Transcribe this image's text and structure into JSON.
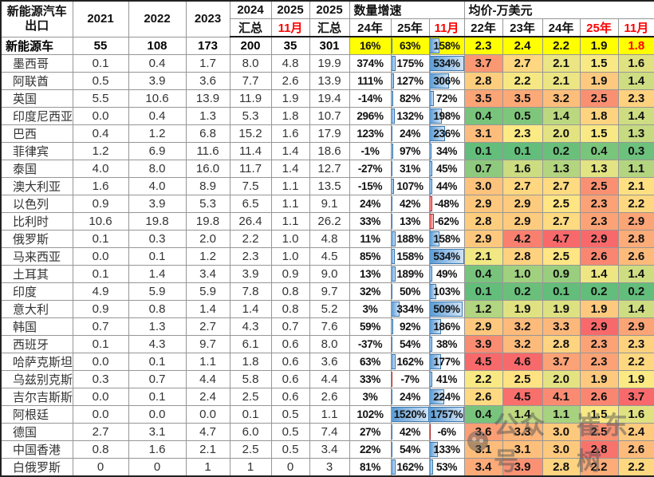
{
  "chart_data": {
    "type": "table",
    "title": "新能源汽车出口",
    "corner_header": [
      "新能源汽车",
      "出口"
    ],
    "year_headers": [
      "2021",
      "2022",
      "2023"
    ],
    "split_headers": [
      {
        "top": "2024",
        "bottom": "汇总",
        "red": false
      },
      {
        "top": "2025",
        "bottom": "11月",
        "red": true
      },
      {
        "top": "2025",
        "bottom": "汇总",
        "red": false
      }
    ],
    "growth_group": {
      "label": "数量增速",
      "subs": [
        "24年",
        "25年",
        "11月"
      ],
      "red_subs": [
        2
      ]
    },
    "price_group": {
      "label": "均价-万美元",
      "subs": [
        "22年",
        "23年",
        "24年",
        "25年",
        "11月"
      ],
      "red_subs": [
        3,
        4
      ]
    },
    "rows": [
      {
        "name": "新能源车",
        "total": true,
        "qty": [
          "55",
          "108",
          "173",
          "200",
          "35",
          "301"
        ],
        "growth": [
          "16%",
          "63%",
          "158%"
        ],
        "price": [
          "2.3",
          "2.4",
          "2.2",
          "1.9",
          "1.8"
        ]
      },
      {
        "name": "墨西哥",
        "total": false,
        "qty": [
          "0.1",
          "0.4",
          "1.7",
          "8.0",
          "4.8",
          "19.9"
        ],
        "growth": [
          "374%",
          "175%",
          "534%"
        ],
        "price": [
          "3.7",
          "2.7",
          "2.1",
          "1.5",
          "1.6"
        ]
      },
      {
        "name": "阿联酋",
        "total": false,
        "qty": [
          "0.5",
          "3.9",
          "3.6",
          "7.7",
          "2.6",
          "13.9"
        ],
        "growth": [
          "111%",
          "127%",
          "306%"
        ],
        "price": [
          "2.8",
          "2.2",
          "2.1",
          "1.9",
          "1.4"
        ]
      },
      {
        "name": "英国",
        "total": false,
        "qty": [
          "5.5",
          "10.6",
          "13.9",
          "11.9",
          "1.9",
          "19.4"
        ],
        "growth": [
          "-14%",
          "82%",
          "72%"
        ],
        "price": [
          "3.5",
          "3.5",
          "3.2",
          "2.5",
          "2.3"
        ]
      },
      {
        "name": "印度尼西亚",
        "total": false,
        "qty": [
          "0.0",
          "0.4",
          "1.3",
          "5.3",
          "1.8",
          "10.7"
        ],
        "growth": [
          "296%",
          "132%",
          "198%"
        ],
        "price": [
          "0.4",
          "0.5",
          "1.4",
          "1.8",
          "1.4"
        ]
      },
      {
        "name": "巴西",
        "total": false,
        "qty": [
          "0.4",
          "1.2",
          "6.8",
          "15.2",
          "1.6",
          "17.9"
        ],
        "growth": [
          "123%",
          "24%",
          "236%"
        ],
        "price": [
          "3.1",
          "2.3",
          "2.0",
          "1.5",
          "1.3"
        ]
      },
      {
        "name": "菲律宾",
        "total": false,
        "qty": [
          "1.2",
          "6.9",
          "11.6",
          "11.4",
          "1.4",
          "18.6"
        ],
        "growth": [
          "-1%",
          "97%",
          "34%"
        ],
        "price": [
          "0.1",
          "0.1",
          "0.2",
          "0.4",
          "0.3"
        ]
      },
      {
        "name": "泰国",
        "total": false,
        "qty": [
          "4.0",
          "8.0",
          "16.0",
          "11.7",
          "1.4",
          "12.7"
        ],
        "growth": [
          "-27%",
          "31%",
          "45%"
        ],
        "price": [
          "0.7",
          "1.6",
          "1.3",
          "1.3",
          "1.1"
        ]
      },
      {
        "name": "澳大利亚",
        "total": false,
        "qty": [
          "1.6",
          "4.0",
          "8.9",
          "7.5",
          "1.1",
          "13.5"
        ],
        "growth": [
          "-15%",
          "107%",
          "44%"
        ],
        "price": [
          "3.0",
          "2.7",
          "2.7",
          "2.5",
          "2.1"
        ]
      },
      {
        "name": "以色列",
        "total": false,
        "qty": [
          "0.9",
          "3.9",
          "5.3",
          "6.5",
          "1.1",
          "9.1"
        ],
        "growth": [
          "24%",
          "42%",
          "-48%"
        ],
        "price": [
          "2.9",
          "2.9",
          "2.5",
          "2.3",
          "2.2"
        ]
      },
      {
        "name": "比利时",
        "total": false,
        "qty": [
          "10.6",
          "19.8",
          "19.8",
          "26.4",
          "1.1",
          "26.2"
        ],
        "growth": [
          "33%",
          "13%",
          "-62%"
        ],
        "price": [
          "2.8",
          "2.9",
          "2.7",
          "2.3",
          "2.9"
        ]
      },
      {
        "name": "俄罗斯",
        "total": false,
        "qty": [
          "0.1",
          "0.3",
          "2.0",
          "2.2",
          "1.0",
          "4.8"
        ],
        "growth": [
          "11%",
          "188%",
          "158%"
        ],
        "price": [
          "2.9",
          "4.2",
          "4.7",
          "2.9",
          "2.8"
        ]
      },
      {
        "name": "马来西亚",
        "total": false,
        "qty": [
          "0.0",
          "0.1",
          "1.2",
          "2.3",
          "1.0",
          "4.5"
        ],
        "growth": [
          "85%",
          "158%",
          "534%"
        ],
        "price": [
          "2.1",
          "2.8",
          "2.5",
          "2.6",
          "2.6"
        ]
      },
      {
        "name": "土耳其",
        "total": false,
        "qty": [
          "0.1",
          "1.4",
          "3.4",
          "3.9",
          "0.9",
          "9.0"
        ],
        "growth": [
          "13%",
          "189%",
          "49%"
        ],
        "price": [
          "0.4",
          "1.0",
          "0.9",
          "1.4",
          "1.4"
        ]
      },
      {
        "name": "印度",
        "total": false,
        "qty": [
          "4.9",
          "5.9",
          "5.9",
          "7.8",
          "0.8",
          "9.7"
        ],
        "growth": [
          "32%",
          "50%",
          "103%"
        ],
        "price": [
          "0.1",
          "0.2",
          "0.1",
          "0.2",
          "0.2"
        ]
      },
      {
        "name": "意大利",
        "total": false,
        "qty": [
          "0.9",
          "0.8",
          "1.4",
          "1.4",
          "0.8",
          "5.2"
        ],
        "growth": [
          "3%",
          "334%",
          "509%"
        ],
        "price": [
          "1.2",
          "1.9",
          "1.9",
          "1.9",
          "1.4"
        ]
      },
      {
        "name": "韩国",
        "total": false,
        "qty": [
          "0.7",
          "1.3",
          "2.7",
          "4.3",
          "0.7",
          "7.6"
        ],
        "growth": [
          "59%",
          "92%",
          "186%"
        ],
        "price": [
          "2.9",
          "3.2",
          "3.3",
          "2.9",
          "2.9"
        ]
      },
      {
        "name": "西班牙",
        "total": false,
        "qty": [
          "0.1",
          "4.3",
          "9.7",
          "6.1",
          "0.6",
          "8.0"
        ],
        "growth": [
          "-37%",
          "54%",
          "38%"
        ],
        "price": [
          "3.9",
          "3.2",
          "2.8",
          "2.3",
          "2.3"
        ]
      },
      {
        "name": "哈萨克斯坦",
        "total": false,
        "qty": [
          "0.0",
          "0.1",
          "1.1",
          "1.8",
          "0.6",
          "3.6"
        ],
        "growth": [
          "63%",
          "162%",
          "177%"
        ],
        "price": [
          "4.5",
          "4.6",
          "3.7",
          "2.3",
          "2.2"
        ]
      },
      {
        "name": "乌兹别克斯",
        "total": false,
        "qty": [
          "0.3",
          "0.7",
          "4.4",
          "5.8",
          "0.6",
          "4.4"
        ],
        "growth": [
          "33%",
          "-7%",
          "41%"
        ],
        "price": [
          "2.2",
          "2.5",
          "2.0",
          "1.9",
          "1.9"
        ]
      },
      {
        "name": "吉尔吉斯斯",
        "total": false,
        "qty": [
          "0.0",
          "0.1",
          "2.4",
          "2.5",
          "0.6",
          "2.6"
        ],
        "growth": [
          "3%",
          "24%",
          "224%"
        ],
        "price": [
          "2.6",
          "4.5",
          "4.1",
          "2.6",
          "3.7"
        ]
      },
      {
        "name": "阿根廷",
        "total": false,
        "qty": [
          "0.0",
          "0.0",
          "0.0",
          "0.1",
          "0.5",
          "1.1"
        ],
        "growth": [
          "102%",
          "1520%",
          "1757%"
        ],
        "price": [
          "0.4",
          "1.4",
          "1.1",
          "1.5",
          "1.6"
        ]
      },
      {
        "name": "德国",
        "total": false,
        "qty": [
          "2.7",
          "3.1",
          "4.7",
          "6.0",
          "0.5",
          "7.4"
        ],
        "growth": [
          "27%",
          "42%",
          "-6%"
        ],
        "price": [
          "3.6",
          "3.3",
          "3.0",
          "2.5",
          "2.4"
        ]
      },
      {
        "name": "中国香港",
        "total": false,
        "qty": [
          "0.8",
          "1.6",
          "2.1",
          "2.5",
          "0.5",
          "3.4"
        ],
        "growth": [
          "22%",
          "54%",
          "133%"
        ],
        "price": [
          "3.1",
          "3.1",
          "3.0",
          "2.8",
          "2.6"
        ]
      },
      {
        "name": "白俄罗斯",
        "total": false,
        "qty": [
          "0",
          "0",
          "1",
          "1",
          "0",
          "3"
        ],
        "growth": [
          "81%",
          "162%",
          "53%"
        ],
        "price": [
          "3.4",
          "3.9",
          "2.8",
          "2.2",
          "2.2"
        ]
      }
    ]
  },
  "watermark": {
    "text1": "公众号",
    "text2": "崔东树"
  },
  "colors": {
    "total_row_bg": "#FFFF00",
    "red_text": "#FF0000",
    "scale_green": "#63BE7B",
    "scale_yellow": "#FFEB84",
    "scale_red": "#F8696B",
    "bar_blue": "#5B9BD5",
    "bar_negative_red": "#E05252",
    "grid": "#969696"
  }
}
